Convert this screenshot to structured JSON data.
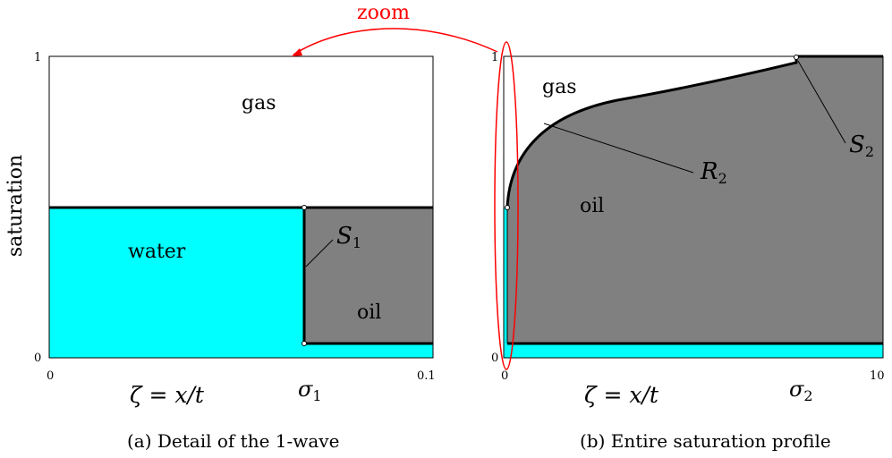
{
  "zoom_label": "zoom",
  "y_axis_label": "saturation",
  "panel_a": {
    "caption": "(a) Detail of the 1-wave",
    "y_tick_top": "1",
    "y_tick_bottom": "0",
    "x_tick_left": "0",
    "x_tick_mid": "σ",
    "x_tick_mid_sub": "1",
    "x_tick_right": "0.1",
    "x_axis_label": "ζ = x/t",
    "region_gas": "gas",
    "region_water": "water",
    "region_oil": "oil",
    "shock_label": "S",
    "shock_sub": "1"
  },
  "panel_b": {
    "caption": "(b) Entire saturation profile",
    "y_tick_top": "1",
    "y_tick_bottom": "0",
    "x_tick_left": "0",
    "x_tick_mid": "σ",
    "x_tick_mid_sub": "2",
    "x_tick_right": "10",
    "x_axis_label": "ζ = x/t",
    "region_gas": "gas",
    "region_oil": "oil",
    "rarefaction_label": "R",
    "rarefaction_sub": "2",
    "shock_label": "S",
    "shock_sub": "2"
  },
  "colors": {
    "water": "#00ffff",
    "oil": "#808080",
    "gas": "#ffffff",
    "zoom": "#ff0000",
    "outline": "#000000"
  }
}
